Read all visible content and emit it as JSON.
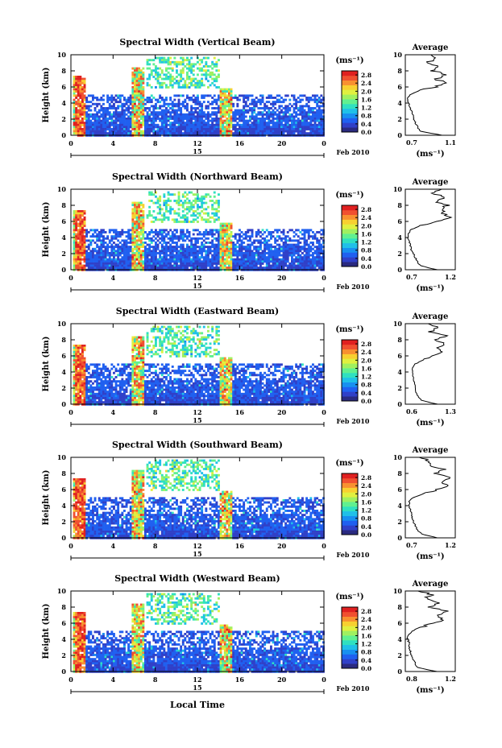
{
  "figure": {
    "xlabel": "Local Time",
    "date_label": "Feb 2010",
    "day_label": "15",
    "ylabel": "Height (km)",
    "unit_label": "(ms⁻¹)",
    "avg_title": "Average",
    "avg_xlabel": "(ms⁻¹)"
  },
  "colors": {
    "scale": [
      "#2a2a80",
      "#3040c8",
      "#2060f0",
      "#1890f0",
      "#20c0e8",
      "#30e0c0",
      "#60f090",
      "#a0f060",
      "#e0f040",
      "#f8d030",
      "#f89030",
      "#f05030",
      "#e02020"
    ]
  },
  "chart_data": [
    {
      "type": "heatmap",
      "title": "Spectral Width (Vertical Beam)",
      "xlim": [
        0,
        24
      ],
      "ylim": [
        0,
        10
      ],
      "xticks": [
        "0",
        "4",
        "8",
        "12",
        "16",
        "20",
        "0"
      ],
      "yticks": [
        "0",
        "2",
        "4",
        "6",
        "8",
        "10"
      ],
      "colorbar_ticks": [
        "0.0",
        "0.4",
        "0.8",
        "1.2",
        "1.6",
        "2.0",
        "2.4",
        "2.8"
      ],
      "colorbar_range": [
        0,
        3.0
      ],
      "profile": {
        "xlim": [
          0.7,
          1.1
        ],
        "xticks": [
          "0.7",
          "1.1"
        ],
        "yticks": [
          "0",
          "2",
          "4",
          "6",
          "8",
          "10"
        ],
        "height": [
          0,
          0.5,
          1,
          1.5,
          2,
          2.5,
          3,
          3.5,
          4,
          4.5,
          5,
          5.5,
          6,
          6.5,
          7,
          7.5,
          8,
          8.5,
          9,
          9.5,
          10
        ],
        "value": [
          1.0,
          0.82,
          0.8,
          0.78,
          0.77,
          0.76,
          0.75,
          0.74,
          0.73,
          0.72,
          0.74,
          0.8,
          0.93,
          1.02,
          0.95,
          1.03,
          0.92,
          0.98,
          0.88,
          0.95,
          0.9
        ]
      }
    },
    {
      "type": "heatmap",
      "title": "Spectral Width (Northward Beam)",
      "xlim": [
        0,
        24
      ],
      "ylim": [
        0,
        10
      ],
      "xticks": [
        "0",
        "4",
        "8",
        "12",
        "16",
        "20",
        "0"
      ],
      "yticks": [
        "0",
        "2",
        "4",
        "6",
        "8",
        "10"
      ],
      "colorbar_ticks": [
        "0.0",
        "0.4",
        "0.8",
        "1.2",
        "1.6",
        "2.0",
        "2.4",
        "2.8"
      ],
      "colorbar_range": [
        0,
        3.0
      ],
      "profile": {
        "xlim": [
          0.7,
          1.2
        ],
        "xticks": [
          "0.7",
          "1.2"
        ],
        "yticks": [
          "0",
          "2",
          "4",
          "6",
          "8",
          "10"
        ],
        "height": [
          0,
          0.5,
          1,
          1.5,
          2,
          2.5,
          3,
          3.5,
          4,
          4.5,
          5,
          5.5,
          6,
          6.5,
          7,
          7.5,
          8,
          8.5,
          9,
          9.5,
          10
        ],
        "value": [
          1.02,
          0.85,
          0.82,
          0.8,
          0.78,
          0.76,
          0.75,
          0.74,
          0.73,
          0.73,
          0.76,
          0.85,
          1.0,
          1.15,
          1.08,
          1.05,
          1.12,
          1.0,
          1.1,
          0.98,
          1.05
        ]
      }
    },
    {
      "type": "heatmap",
      "title": "Spectral Width (Eastward Beam)",
      "xlim": [
        0,
        24
      ],
      "ylim": [
        0,
        10
      ],
      "xticks": [
        "0",
        "4",
        "8",
        "12",
        "16",
        "20",
        "0"
      ],
      "yticks": [
        "0",
        "2",
        "4",
        "6",
        "8",
        "10"
      ],
      "colorbar_ticks": [
        "0.0",
        "0.4",
        "0.8",
        "1.2",
        "1.6",
        "2.0",
        "2.4",
        "2.8"
      ],
      "colorbar_range": [
        0,
        3.0
      ],
      "profile": {
        "xlim": [
          0.6,
          1.3
        ],
        "xticks": [
          "0.6",
          "1.3"
        ],
        "yticks": [
          "0",
          "2",
          "4",
          "6",
          "8",
          "10"
        ],
        "height": [
          0,
          0.5,
          1,
          1.5,
          2,
          2.5,
          3,
          3.5,
          4,
          4.5,
          5,
          5.5,
          6,
          6.5,
          7,
          7.5,
          8,
          8.5,
          9,
          9.5,
          10
        ],
        "value": [
          1.05,
          0.82,
          0.78,
          0.75,
          0.74,
          0.73,
          0.72,
          0.71,
          0.7,
          0.7,
          0.74,
          0.85,
          1.0,
          1.12,
          1.05,
          1.15,
          1.0,
          1.2,
          0.95,
          1.05,
          0.95
        ]
      }
    },
    {
      "type": "heatmap",
      "title": "Spectral Width (Southward Beam)",
      "xlim": [
        0,
        24
      ],
      "ylim": [
        0,
        10
      ],
      "xticks": [
        "0",
        "4",
        "8",
        "12",
        "16",
        "20",
        "0"
      ],
      "yticks": [
        "0",
        "2",
        "4",
        "6",
        "8",
        "10"
      ],
      "colorbar_ticks": [
        "0.0",
        "0.4",
        "0.8",
        "1.2",
        "1.6",
        "2.0",
        "2.4",
        "2.8"
      ],
      "colorbar_range": [
        0,
        3.0
      ],
      "profile": {
        "xlim": [
          0.7,
          1.2
        ],
        "xticks": [
          "0.7",
          "1.2"
        ],
        "yticks": [
          "0",
          "2",
          "4",
          "6",
          "8",
          "10"
        ],
        "height": [
          0,
          0.5,
          1,
          1.5,
          2,
          2.5,
          3,
          3.5,
          4,
          4.5,
          5,
          5.5,
          6,
          6.5,
          7,
          7.5,
          8,
          8.5,
          9,
          9.5,
          10
        ],
        "value": [
          1.02,
          0.86,
          0.82,
          0.8,
          0.78,
          0.77,
          0.76,
          0.75,
          0.74,
          0.74,
          0.78,
          0.88,
          1.02,
          1.12,
          1.05,
          1.15,
          1.0,
          1.08,
          0.92,
          0.95,
          0.85
        ]
      }
    },
    {
      "type": "heatmap",
      "title": "Spectral Width (Westward Beam)",
      "xlim": [
        0,
        24
      ],
      "ylim": [
        0,
        10
      ],
      "xticks": [
        "0",
        "4",
        "8",
        "12",
        "16",
        "20",
        "0"
      ],
      "yticks": [
        "0",
        "2",
        "4",
        "6",
        "8",
        "10"
      ],
      "colorbar_ticks": [
        "0.0",
        "0.4",
        "0.8",
        "1.2",
        "1.6",
        "2.0",
        "2.4",
        "2.8"
      ],
      "colorbar_range": [
        0,
        3.0
      ],
      "profile": {
        "xlim": [
          0.8,
          1.2
        ],
        "xticks": [
          "0.8",
          "1.2"
        ],
        "yticks": [
          "0",
          "2",
          "4",
          "6",
          "8",
          "10"
        ],
        "height": [
          0,
          0.5,
          1,
          1.5,
          2,
          2.5,
          3,
          3.5,
          4,
          4.5,
          5,
          5.5,
          6,
          6.5,
          7,
          7.5,
          8,
          8.5,
          9,
          9.5,
          10
        ],
        "value": [
          1.05,
          0.9,
          0.88,
          0.86,
          0.85,
          0.84,
          0.83,
          0.83,
          0.82,
          0.82,
          0.85,
          0.92,
          1.02,
          1.1,
          1.05,
          1.12,
          1.0,
          1.08,
          0.95,
          1.0,
          0.92
        ]
      }
    }
  ]
}
